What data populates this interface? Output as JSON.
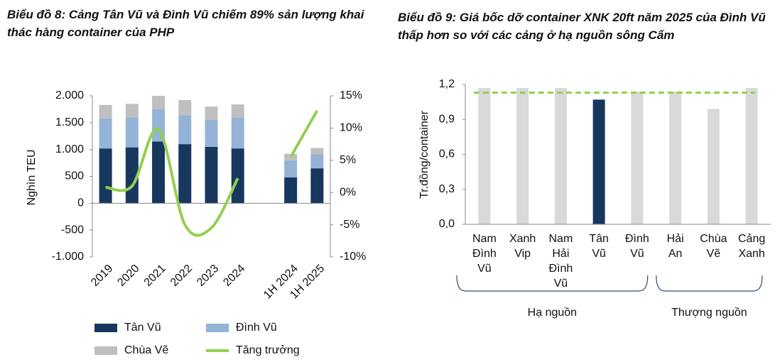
{
  "chart_data": [
    {
      "type": "stacked-bar-line",
      "title": "Biểu đồ 8: Cảng Tân Vũ và Đình Vũ chiếm 89% sản lượng khai thác hàng container của PHP",
      "ylabel": "Nghìn TEU",
      "categories": [
        "2019",
        "2020",
        "2021",
        "2022",
        "2023",
        "2024",
        null,
        "1H 2024",
        "1H 2025"
      ],
      "series": [
        {
          "name": "Tân Vũ",
          "color": "#17375e",
          "values": [
            1020,
            1040,
            1150,
            1100,
            1050,
            1020,
            null,
            480,
            650
          ]
        },
        {
          "name": "Đình Vũ",
          "color": "#95b3d7",
          "values": [
            560,
            560,
            600,
            540,
            500,
            570,
            null,
            320,
            260
          ]
        },
        {
          "name": "Chùa Vẽ",
          "color": "#bfbfbf",
          "values": [
            250,
            250,
            250,
            280,
            250,
            250,
            null,
            120,
            120
          ]
        },
        {
          "name": "Tăng trưởng",
          "color": "#92d050",
          "axis": "y2",
          "kind": "line",
          "values": [
            0.8,
            1,
            9.8,
            -5,
            -5.5,
            2.2,
            null,
            5.5,
            12.7
          ]
        }
      ],
      "ylim": [
        -1000,
        2000
      ],
      "yticks": [
        {
          "value": -1000,
          "label": "-1.000"
        },
        {
          "value": -500,
          "label": "-500"
        },
        0,
        500,
        {
          "value": 1000,
          "label": "1.000"
        },
        {
          "value": 1500,
          "label": "1.500"
        },
        {
          "value": 2000,
          "label": "2.000"
        }
      ],
      "y2lim": [
        -10,
        15
      ],
      "y2ticks": [
        {
          "value": -10,
          "label": "-10%"
        },
        {
          "value": -5,
          "label": "-5%"
        },
        {
          "value": 0,
          "label": "0%"
        },
        {
          "value": 5,
          "label": "5%"
        },
        {
          "value": 10,
          "label": "10%"
        },
        {
          "value": 15,
          "label": "15%"
        }
      ],
      "grid": false,
      "legend": "bottom"
    },
    {
      "type": "bar",
      "title": "Biểu đồ 9: Giá bốc dỡ container XNK 20ft năm 2025 của Đình Vũ thấp hơn so với các cảng ở hạ nguồn sông Cấm",
      "ylabel": "Tr.đồng/container",
      "categories": [
        "Nam Đình Vũ",
        "Xanh Vip",
        "Nam Hải Đình Vũ",
        "Tân Vũ",
        "Đình Vũ",
        "Hải An",
        "Chùa Vẽ",
        "Cảng Xanh"
      ],
      "values": [
        1.17,
        1.17,
        1.17,
        1.07,
        1.14,
        1.14,
        0.99,
        1.17
      ],
      "colors": [
        "#d9d9d9",
        "#d9d9d9",
        "#d9d9d9",
        "#17375e",
        "#d9d9d9",
        "#d9d9d9",
        "#d9d9d9",
        "#d9d9d9"
      ],
      "reference_line": {
        "value": 1.13,
        "color": "#92d050"
      },
      "groups": [
        {
          "label": "Hạ nguồn",
          "start": 0,
          "end": 4
        },
        {
          "label": "Thượng nguồn",
          "start": 5,
          "end": 7
        }
      ],
      "ylim": [
        0,
        1.2
      ],
      "yticks": [
        {
          "value": 0,
          "label": "0,0"
        },
        {
          "value": 0.3,
          "label": "0,3"
        },
        {
          "value": 0.6,
          "label": "0,6"
        },
        {
          "value": 0.9,
          "label": "0,9"
        },
        {
          "value": 1.2,
          "label": "1,2"
        }
      ],
      "grid": false
    }
  ]
}
